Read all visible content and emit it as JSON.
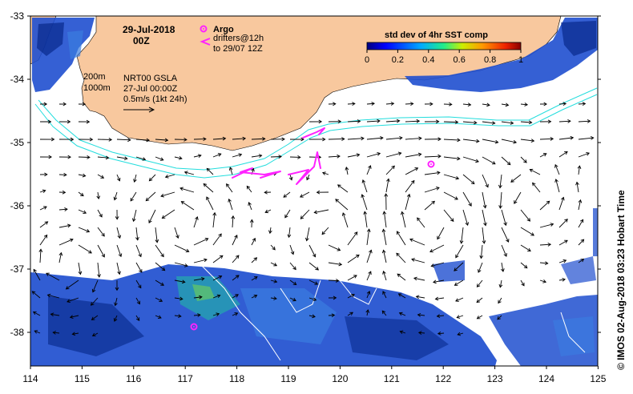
{
  "map": {
    "date_line1": "29-Jul-2018",
    "date_line2": "00Z",
    "argo_label": "Argo",
    "drifters_line1": "drifters@12h",
    "drifters_line2": "to 29/07 12Z",
    "contour_200": "200m",
    "contour_1000": "1000m",
    "product_line1": "NRT00 GSLA",
    "product_line2": "27-Jul 00:00Z",
    "product_line3": "0.5m/s (1kt 24h)",
    "colorbar_title": "std dev of 4hr SST comp",
    "colorbar_ticks": [
      "0",
      "0.2",
      "0.4",
      "0.6",
      "0.8",
      "1"
    ],
    "credit": "© IMOS 02-Aug-2018 03:23 Hobart Time",
    "x_ticks": [
      "114",
      "115",
      "116",
      "117",
      "118",
      "119",
      "120",
      "121",
      "122",
      "123",
      "124",
      "125"
    ],
    "y_ticks": [
      "-33",
      "-34",
      "-35",
      "-36",
      "-37",
      "-38"
    ],
    "land_color": "#f8c89e",
    "isobath_color": "#22dddd",
    "drifter_color": "#ff22ff",
    "argo_color": "#ff22ff"
  }
}
